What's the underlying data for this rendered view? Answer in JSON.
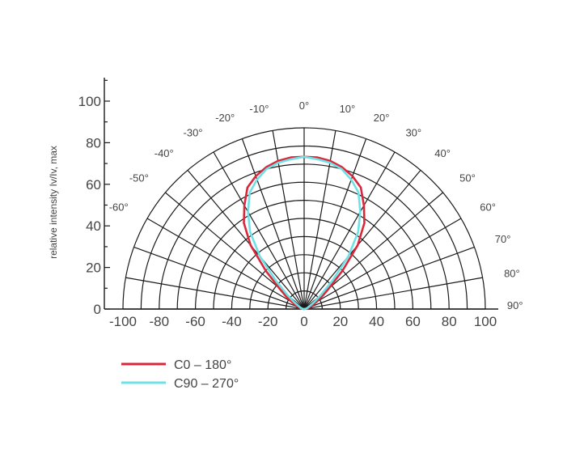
{
  "chart_data": {
    "type": "polar",
    "ylabel": "relative intensity Iv/Iv, max",
    "r_max": 100,
    "rings": [
      10,
      20,
      30,
      40,
      50,
      60,
      70,
      80,
      90,
      100
    ],
    "angles_deg": [
      -90,
      -80,
      -70,
      -60,
      -50,
      -40,
      -30,
      -20,
      -10,
      0,
      10,
      20,
      30,
      40,
      50,
      60,
      70,
      80,
      90
    ],
    "angle_labels": [
      {
        "deg": -60,
        "label": "-60°"
      },
      {
        "deg": -50,
        "label": "-50°"
      },
      {
        "deg": -40,
        "label": "-40°"
      },
      {
        "deg": -30,
        "label": "-30°"
      },
      {
        "deg": -20,
        "label": "-20°"
      },
      {
        "deg": -10,
        "label": "-10°"
      },
      {
        "deg": 0,
        "label": "0°"
      },
      {
        "deg": 10,
        "label": "10°"
      },
      {
        "deg": 20,
        "label": "20°"
      },
      {
        "deg": 30,
        "label": "30°"
      },
      {
        "deg": 40,
        "label": "40°"
      },
      {
        "deg": 50,
        "label": "50°"
      },
      {
        "deg": 60,
        "label": "60°"
      },
      {
        "deg": 70,
        "label": "70°"
      },
      {
        "deg": 80,
        "label": "80°"
      },
      {
        "deg": 90,
        "label": "90°"
      }
    ],
    "x_ticks": [
      -100,
      -80,
      -60,
      -40,
      -20,
      0,
      20,
      40,
      60,
      80,
      100
    ],
    "y_ticks": [
      0,
      20,
      40,
      60,
      80,
      100
    ],
    "series": [
      {
        "name": "C0 – 180°",
        "color": "#d9283b",
        "angles": [
          -90,
          -80,
          -70,
          -60,
          -55,
          -50,
          -45,
          -40,
          -35,
          -30,
          -25,
          -20,
          -15,
          -10,
          -5,
          0,
          5,
          10,
          15,
          20,
          25,
          30,
          35,
          40,
          45,
          50,
          55,
          60,
          70,
          80,
          90
        ],
        "values": [
          0,
          2,
          4,
          8,
          12,
          18,
          30,
          46,
          58,
          66,
          74,
          78,
          81,
          83,
          84,
          84,
          84,
          83,
          81,
          78,
          74,
          66,
          58,
          46,
          30,
          18,
          12,
          8,
          4,
          2,
          0
        ]
      },
      {
        "name": "C90 – 270°",
        "color": "#6fe0e4",
        "angles": [
          -90,
          -80,
          -70,
          -60,
          -55,
          -50,
          -45,
          -40,
          -35,
          -30,
          -25,
          -20,
          -15,
          -10,
          -5,
          0,
          5,
          10,
          15,
          20,
          25,
          30,
          35,
          40,
          45,
          50,
          55,
          60,
          70,
          80,
          90
        ],
        "values": [
          0,
          1,
          2,
          4,
          7,
          12,
          22,
          38,
          52,
          62,
          71,
          76,
          80,
          82,
          83,
          84,
          83,
          82,
          80,
          76,
          71,
          62,
          52,
          38,
          22,
          12,
          7,
          4,
          2,
          1,
          0
        ]
      }
    ]
  }
}
